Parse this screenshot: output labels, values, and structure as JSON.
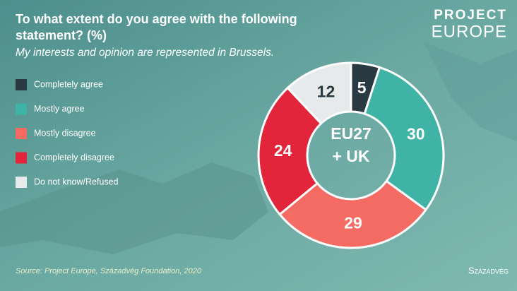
{
  "chart_data": {
    "type": "donut",
    "title_lines": [
      "To what extent do you agree with the following",
      "statement? (%)"
    ],
    "subtitle": "My interests and opinion are represented in Brussels.",
    "categories": [
      "Completely agree",
      "Mostly agree",
      "Mostly disagree",
      "Completely disagree",
      "Do not know/Refused"
    ],
    "values": [
      5,
      30,
      29,
      24,
      12
    ],
    "colors": [
      "#2a3a42",
      "#3fb3a6",
      "#f36b63",
      "#e2253a",
      "#e6eaea"
    ],
    "center_label": [
      "EU27",
      "+ UK"
    ],
    "source": "Source: Project Europe, Századvég Foundation, 2020",
    "logo": [
      "PROJECT",
      "EUROPE"
    ],
    "footer_logo": "Századvég"
  }
}
